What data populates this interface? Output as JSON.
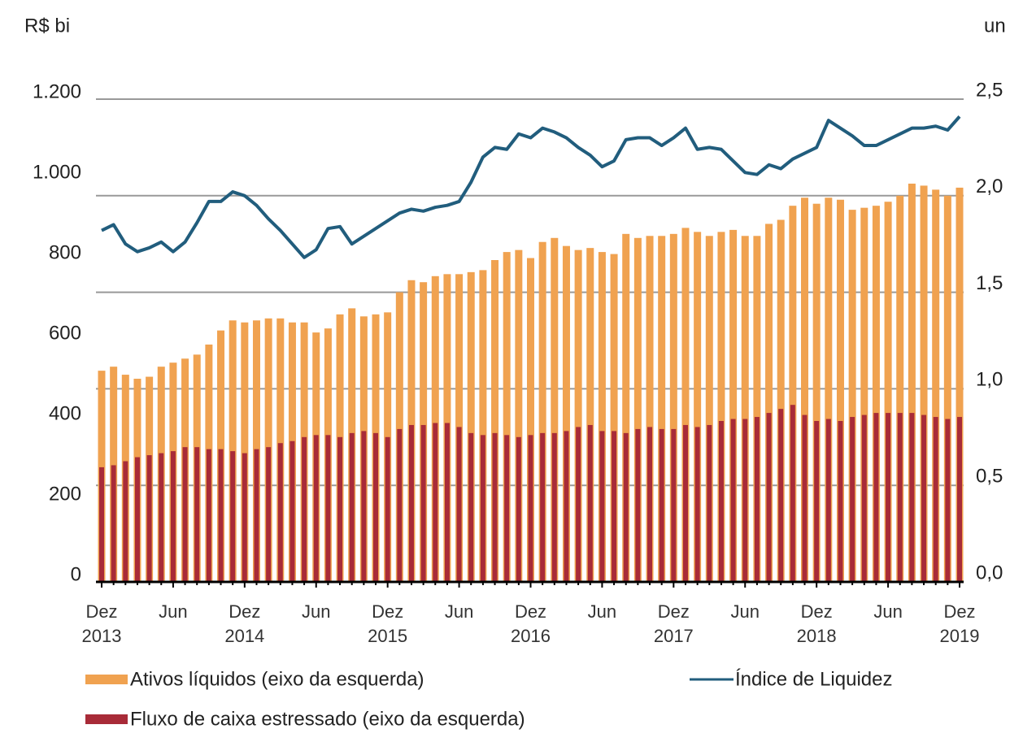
{
  "chart_data": {
    "type": "bar",
    "y_label": "R$ bi",
    "y2_label": "un",
    "categories": [
      "Dez\n2013",
      null,
      null,
      null,
      null,
      null,
      "Jun",
      null,
      null,
      null,
      null,
      null,
      "Dez\n2014",
      null,
      null,
      null,
      null,
      null,
      "Jun",
      null,
      null,
      null,
      null,
      null,
      "Dez\n2015",
      null,
      null,
      null,
      null,
      null,
      "Jun",
      null,
      null,
      null,
      null,
      null,
      "Dez\n2016",
      null,
      null,
      null,
      null,
      null,
      "Jun",
      null,
      null,
      null,
      null,
      null,
      "Dez\n2017",
      null,
      null,
      null,
      null,
      null,
      "Jun",
      null,
      null,
      null,
      null,
      null,
      "Dez\n2018",
      null,
      null,
      null,
      null,
      null,
      "Jun",
      null,
      null,
      null,
      null,
      null,
      "Dez\n2019"
    ],
    "series": [
      {
        "name": "Ativos líquidos (eixo da esquerda)",
        "color": "#f0a250",
        "values": [
          525,
          535,
          515,
          505,
          510,
          535,
          545,
          555,
          565,
          590,
          625,
          650,
          645,
          650,
          655,
          655,
          645,
          645,
          620,
          630,
          665,
          680,
          660,
          665,
          670,
          720,
          750,
          745,
          760,
          765,
          765,
          770,
          775,
          800,
          820,
          825,
          805,
          845,
          855,
          835,
          825,
          830,
          820,
          815,
          865,
          855,
          860,
          860,
          865,
          880,
          870,
          860,
          870,
          875,
          860,
          860,
          890,
          900,
          935,
          955,
          940,
          955,
          950,
          925,
          930,
          935,
          945,
          960,
          990,
          985,
          975,
          960,
          980
        ]
      },
      {
        "name": "Fluxo de caixa estressado (eixo da esquerda)",
        "color": "#a82b38",
        "values": [
          285,
          290,
          300,
          310,
          315,
          320,
          325,
          335,
          335,
          330,
          330,
          325,
          320,
          330,
          335,
          345,
          350,
          360,
          365,
          365,
          360,
          370,
          375,
          370,
          360,
          380,
          390,
          390,
          395,
          395,
          385,
          370,
          365,
          370,
          365,
          360,
          365,
          370,
          370,
          375,
          385,
          390,
          375,
          375,
          370,
          380,
          385,
          380,
          380,
          390,
          385,
          390,
          400,
          405,
          405,
          410,
          420,
          430,
          440,
          415,
          400,
          405,
          400,
          410,
          415,
          420,
          420,
          420,
          420,
          415,
          410,
          405,
          410
        ]
      },
      {
        "name": "Índice de Liquidez",
        "color": "#215d7d",
        "type": "line",
        "axis": "y2",
        "values": [
          1.82,
          1.85,
          1.75,
          1.71,
          1.73,
          1.76,
          1.71,
          1.76,
          1.86,
          1.97,
          1.97,
          2.02,
          2.0,
          1.95,
          1.88,
          1.82,
          1.75,
          1.68,
          1.72,
          1.83,
          1.84,
          1.75,
          1.79,
          1.83,
          1.87,
          1.91,
          1.93,
          1.92,
          1.94,
          1.95,
          1.97,
          2.07,
          2.2,
          2.25,
          2.24,
          2.32,
          2.3,
          2.35,
          2.33,
          2.3,
          2.25,
          2.21,
          2.15,
          2.18,
          2.29,
          2.3,
          2.3,
          2.26,
          2.3,
          2.35,
          2.24,
          2.25,
          2.24,
          2.18,
          2.12,
          2.11,
          2.16,
          2.14,
          2.19,
          2.22,
          2.25,
          2.39,
          2.35,
          2.31,
          2.26,
          2.26,
          2.29,
          2.32,
          2.35,
          2.35,
          2.36,
          2.34,
          2.41
        ]
      }
    ],
    "ylim": [
      0,
      1200
    ],
    "yticks": [
      0,
      200,
      400,
      600,
      800,
      {
        "value": 1000,
        "label": "1.000"
      },
      {
        "value": 1200,
        "label": "1.200"
      }
    ],
    "y2lim": [
      0,
      2.5
    ],
    "y2ticks": [
      {
        "value": 0,
        "label": "0,0"
      },
      {
        "value": 0.5,
        "label": "0,5"
      },
      {
        "value": 1,
        "label": "1,0"
      },
      {
        "value": 1.5,
        "label": "1,5"
      },
      {
        "value": 2,
        "label": "2,0"
      },
      {
        "value": 2.5,
        "label": "2,5"
      }
    ],
    "grid": true
  }
}
